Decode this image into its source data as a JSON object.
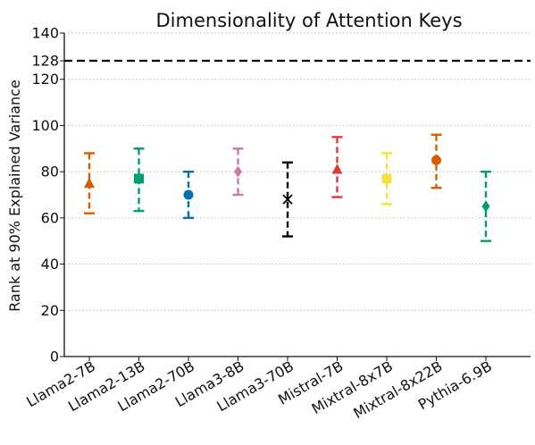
{
  "chart_data": {
    "type": "errorbar",
    "title": "Dimensionality of Attention Keys",
    "ylabel": "Rank at 90% Explained Variance",
    "xlabel": "",
    "ylim": [
      0,
      140
    ],
    "yticks": [
      0,
      20,
      40,
      60,
      80,
      100,
      120,
      128,
      140
    ],
    "grid": "horizontal dotted",
    "reference_line": {
      "y": 128,
      "style": "dashed",
      "color": "#000000"
    },
    "categories": [
      "Llama2-7B",
      "Llama2-13B",
      "Llama2-70B",
      "Llama3-8B",
      "Llama3-70B",
      "Mistral-7B",
      "Mixtral-8x7B",
      "Mixtral-8x22B",
      "Pythia-6.9B"
    ],
    "series": [
      {
        "mean": 75,
        "low": 62,
        "high": 88,
        "color": "#d55e00",
        "marker": "triangle"
      },
      {
        "mean": 77,
        "low": 63,
        "high": 90,
        "color": "#009e73",
        "marker": "square"
      },
      {
        "mean": 70,
        "low": 60,
        "high": 80,
        "color": "#0072b2",
        "marker": "circle"
      },
      {
        "mean": 80,
        "low": 70,
        "high": 90,
        "color": "#cc79a7",
        "marker": "diamond"
      },
      {
        "mean": 68,
        "low": 52,
        "high": 84,
        "color": "#000000",
        "marker": "x"
      },
      {
        "mean": 81,
        "low": 69,
        "high": 95,
        "color": "#e03a3a",
        "marker": "triangle"
      },
      {
        "mean": 77,
        "low": 66,
        "high": 88,
        "color": "#f0e442",
        "marker": "square"
      },
      {
        "mean": 85,
        "low": 73,
        "high": 96,
        "color": "#d55e00",
        "marker": "circle"
      },
      {
        "mean": 65,
        "low": 50,
        "high": 80,
        "color": "#009e73",
        "marker": "diamond"
      }
    ]
  }
}
